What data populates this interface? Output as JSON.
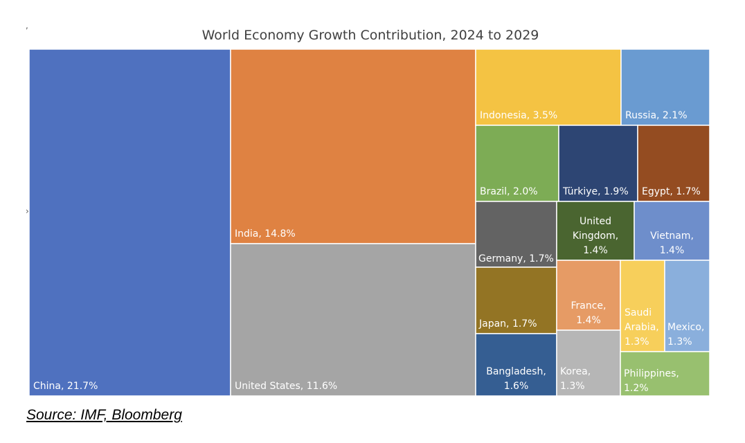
{
  "chart_data": {
    "type": "treemap",
    "title": "World Economy Growth Contribution, 2024 to 2029",
    "unit": "%",
    "items": [
      {
        "name": "China",
        "label": "China, 21.7%",
        "value": 21.7,
        "color": "#4f71bf"
      },
      {
        "name": "India",
        "label": "India, 14.8%",
        "value": 14.8,
        "color": "#df8242"
      },
      {
        "name": "United States",
        "label": "United States, 11.6%",
        "value": 11.6,
        "color": "#a5a5a5"
      },
      {
        "name": "Indonesia",
        "label": "Indonesia, 3.5%",
        "value": 3.5,
        "color": "#f4c343"
      },
      {
        "name": "Russia",
        "label": "Russia, 2.1%",
        "value": 2.1,
        "color": "#6a9bd1"
      },
      {
        "name": "Brazil",
        "label": "Brazil, 2.0%",
        "value": 2.0,
        "color": "#7dac55"
      },
      {
        "name": "Türkiye",
        "label": "Türkiye, 1.9%",
        "value": 1.9,
        "color": "#2d4573"
      },
      {
        "name": "Egypt",
        "label": "Egypt, 1.7%",
        "value": 1.7,
        "color": "#944c21"
      },
      {
        "name": "Germany",
        "label": "Germany, 1.7%",
        "value": 1.7,
        "color": "#636363"
      },
      {
        "name": "United Kingdom",
        "label": "United Kingdom, 1.4%",
        "label_lines": [
          "United",
          "Kingdom,",
          "1.4%"
        ],
        "value": 1.4,
        "color": "#4a6530"
      },
      {
        "name": "Vietnam",
        "label": "Vietnam, 1.4%",
        "label_lines": [
          "Vietnam,",
          "1.4%"
        ],
        "value": 1.4,
        "color": "#6e8ecb"
      },
      {
        "name": "Japan",
        "label": "Japan, 1.7%",
        "value": 1.7,
        "color": "#937424"
      },
      {
        "name": "France",
        "label": "France, 1.4%",
        "label_lines": [
          "France,",
          "1.4%"
        ],
        "value": 1.4,
        "color": "#e69b65"
      },
      {
        "name": "Saudi Arabia",
        "label": "Saudi Arabia, 1.3%",
        "label_lines": [
          "Saudi",
          "Arabia,",
          "1.3%"
        ],
        "value": 1.3,
        "color": "#f7cf5b"
      },
      {
        "name": "Mexico",
        "label": "Mexico, 1.3%",
        "label_lines": [
          "Mexico,",
          "1.3%"
        ],
        "value": 1.3,
        "color": "#8aafdc"
      },
      {
        "name": "Bangladesh",
        "label": "Bangladesh, 1.6%",
        "label_lines": [
          "Bangladesh,",
          "1.6%"
        ],
        "value": 1.6,
        "color": "#355e92"
      },
      {
        "name": "Korea",
        "label": "Korea, 1.3%",
        "label_lines": [
          "Korea,",
          "1.3%"
        ],
        "value": 1.3,
        "color": "#b6b6b6"
      },
      {
        "name": "Philippines",
        "label": "Philippines, 1.2%",
        "label_lines": [
          "Philippines,",
          "1.2%"
        ],
        "value": 1.2,
        "color": "#98c06f"
      }
    ]
  },
  "source": "Source: IMF, Bloomberg"
}
